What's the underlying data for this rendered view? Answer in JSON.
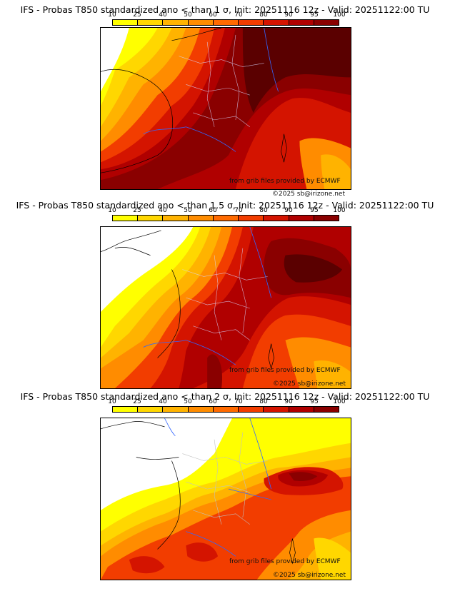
{
  "legend": {
    "ticks": [
      "10",
      "25",
      "40",
      "50",
      "60",
      "70",
      "80",
      "90",
      "95",
      "100"
    ],
    "colors": [
      "#ffff00",
      "#ffd700",
      "#ffb300",
      "#ff8c00",
      "#ff6a00",
      "#f23d00",
      "#d41400",
      "#b00000",
      "#8a0000",
      "#5a0000"
    ]
  },
  "panels": [
    {
      "title": "IFS - Probas T850  standardized ano < than 1 σ, Init: 20251116 12z - Valid: 20251122:00 TU",
      "credit_source": "from grib files provided by ECMWF",
      "credit_copyright": "©2025 sb@irizone.net"
    },
    {
      "title": "IFS - Probas T850  standardized ano < than 1.5 σ, Init: 20251116 12z - Valid: 20251122:00 TU",
      "credit_source": "from grib files provided by ECMWF",
      "credit_copyright": "©2025 sb@irizone.net"
    },
    {
      "title": "IFS - Probas T850  standardized ano < than 2 σ, Init: 20251116 12z - Valid: 20251122:00 TU",
      "credit_source": "from grib files provided by ECMWF",
      "credit_copyright": "©2025 sb@irizone.net"
    }
  ]
}
